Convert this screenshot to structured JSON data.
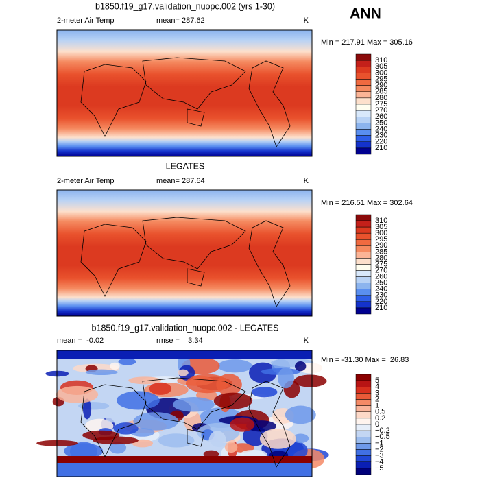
{
  "header": {
    "season": "ANN"
  },
  "panels": [
    {
      "title": "b1850.f19_g17.validation_nuopc.002 (yrs 1-30)",
      "left_text": "2-meter Air Temp",
      "center_text": "mean= 287.62",
      "units": "K",
      "range": "Min = 217.91 Max = 305.16",
      "colorbar": {
        "labels": [
          "310",
          "305",
          "300",
          "295",
          "290",
          "285",
          "280",
          "275",
          "270",
          "260",
          "250",
          "240",
          "230",
          "220",
          "210"
        ],
        "colors": [
          "#8b0a0a",
          "#c4201a",
          "#dc3a20",
          "#e9522d",
          "#f06a40",
          "#f58a60",
          "#fbb496",
          "#fde0cc",
          "#fffef0",
          "#d8e8fb",
          "#b8d2f5",
          "#8cb4ee",
          "#5a8ff0",
          "#2e5ee8",
          "#1432cc",
          "#000090"
        ]
      }
    },
    {
      "title": "LEGATES",
      "left_text": "2-meter Air Temp",
      "center_text": "mean= 287.64",
      "units": "K",
      "range": "Min = 216.51 Max = 302.64",
      "colorbar": {
        "labels": [
          "310",
          "305",
          "300",
          "295",
          "290",
          "285",
          "280",
          "275",
          "270",
          "260",
          "250",
          "240",
          "230",
          "220",
          "210"
        ],
        "colors": [
          "#8b0a0a",
          "#c4201a",
          "#dc3a20",
          "#e9522d",
          "#f06a40",
          "#f58a60",
          "#fbb496",
          "#fde0cc",
          "#fffef0",
          "#d8e8fb",
          "#b8d2f5",
          "#8cb4ee",
          "#5a8ff0",
          "#2e5ee8",
          "#1432cc",
          "#000090"
        ]
      }
    },
    {
      "title": "b1850.f19_g17.validation_nuopc.002 - LEGATES",
      "left_text": "mean =  -0.02",
      "center_text": "rmse =    3.34",
      "units": "K",
      "range": "Min = -31.30 Max =  26.83",
      "colorbar": {
        "labels": [
          "5",
          "4",
          "3",
          "2",
          "1",
          "0.5",
          "0.2",
          "0",
          "−0.2",
          "−0.5",
          "−1",
          "−2",
          "−3",
          "−4",
          "−5"
        ],
        "colors": [
          "#8b0000",
          "#b81414",
          "#d8301e",
          "#ea5a38",
          "#f48a66",
          "#f9b49a",
          "#fdd9c8",
          "#fff4ee",
          "#e6eef9",
          "#c3d6f3",
          "#9dbdee",
          "#6e99ea",
          "#4170e4",
          "#2047d6",
          "#0a1fb4",
          "#00007a"
        ]
      }
    }
  ]
}
